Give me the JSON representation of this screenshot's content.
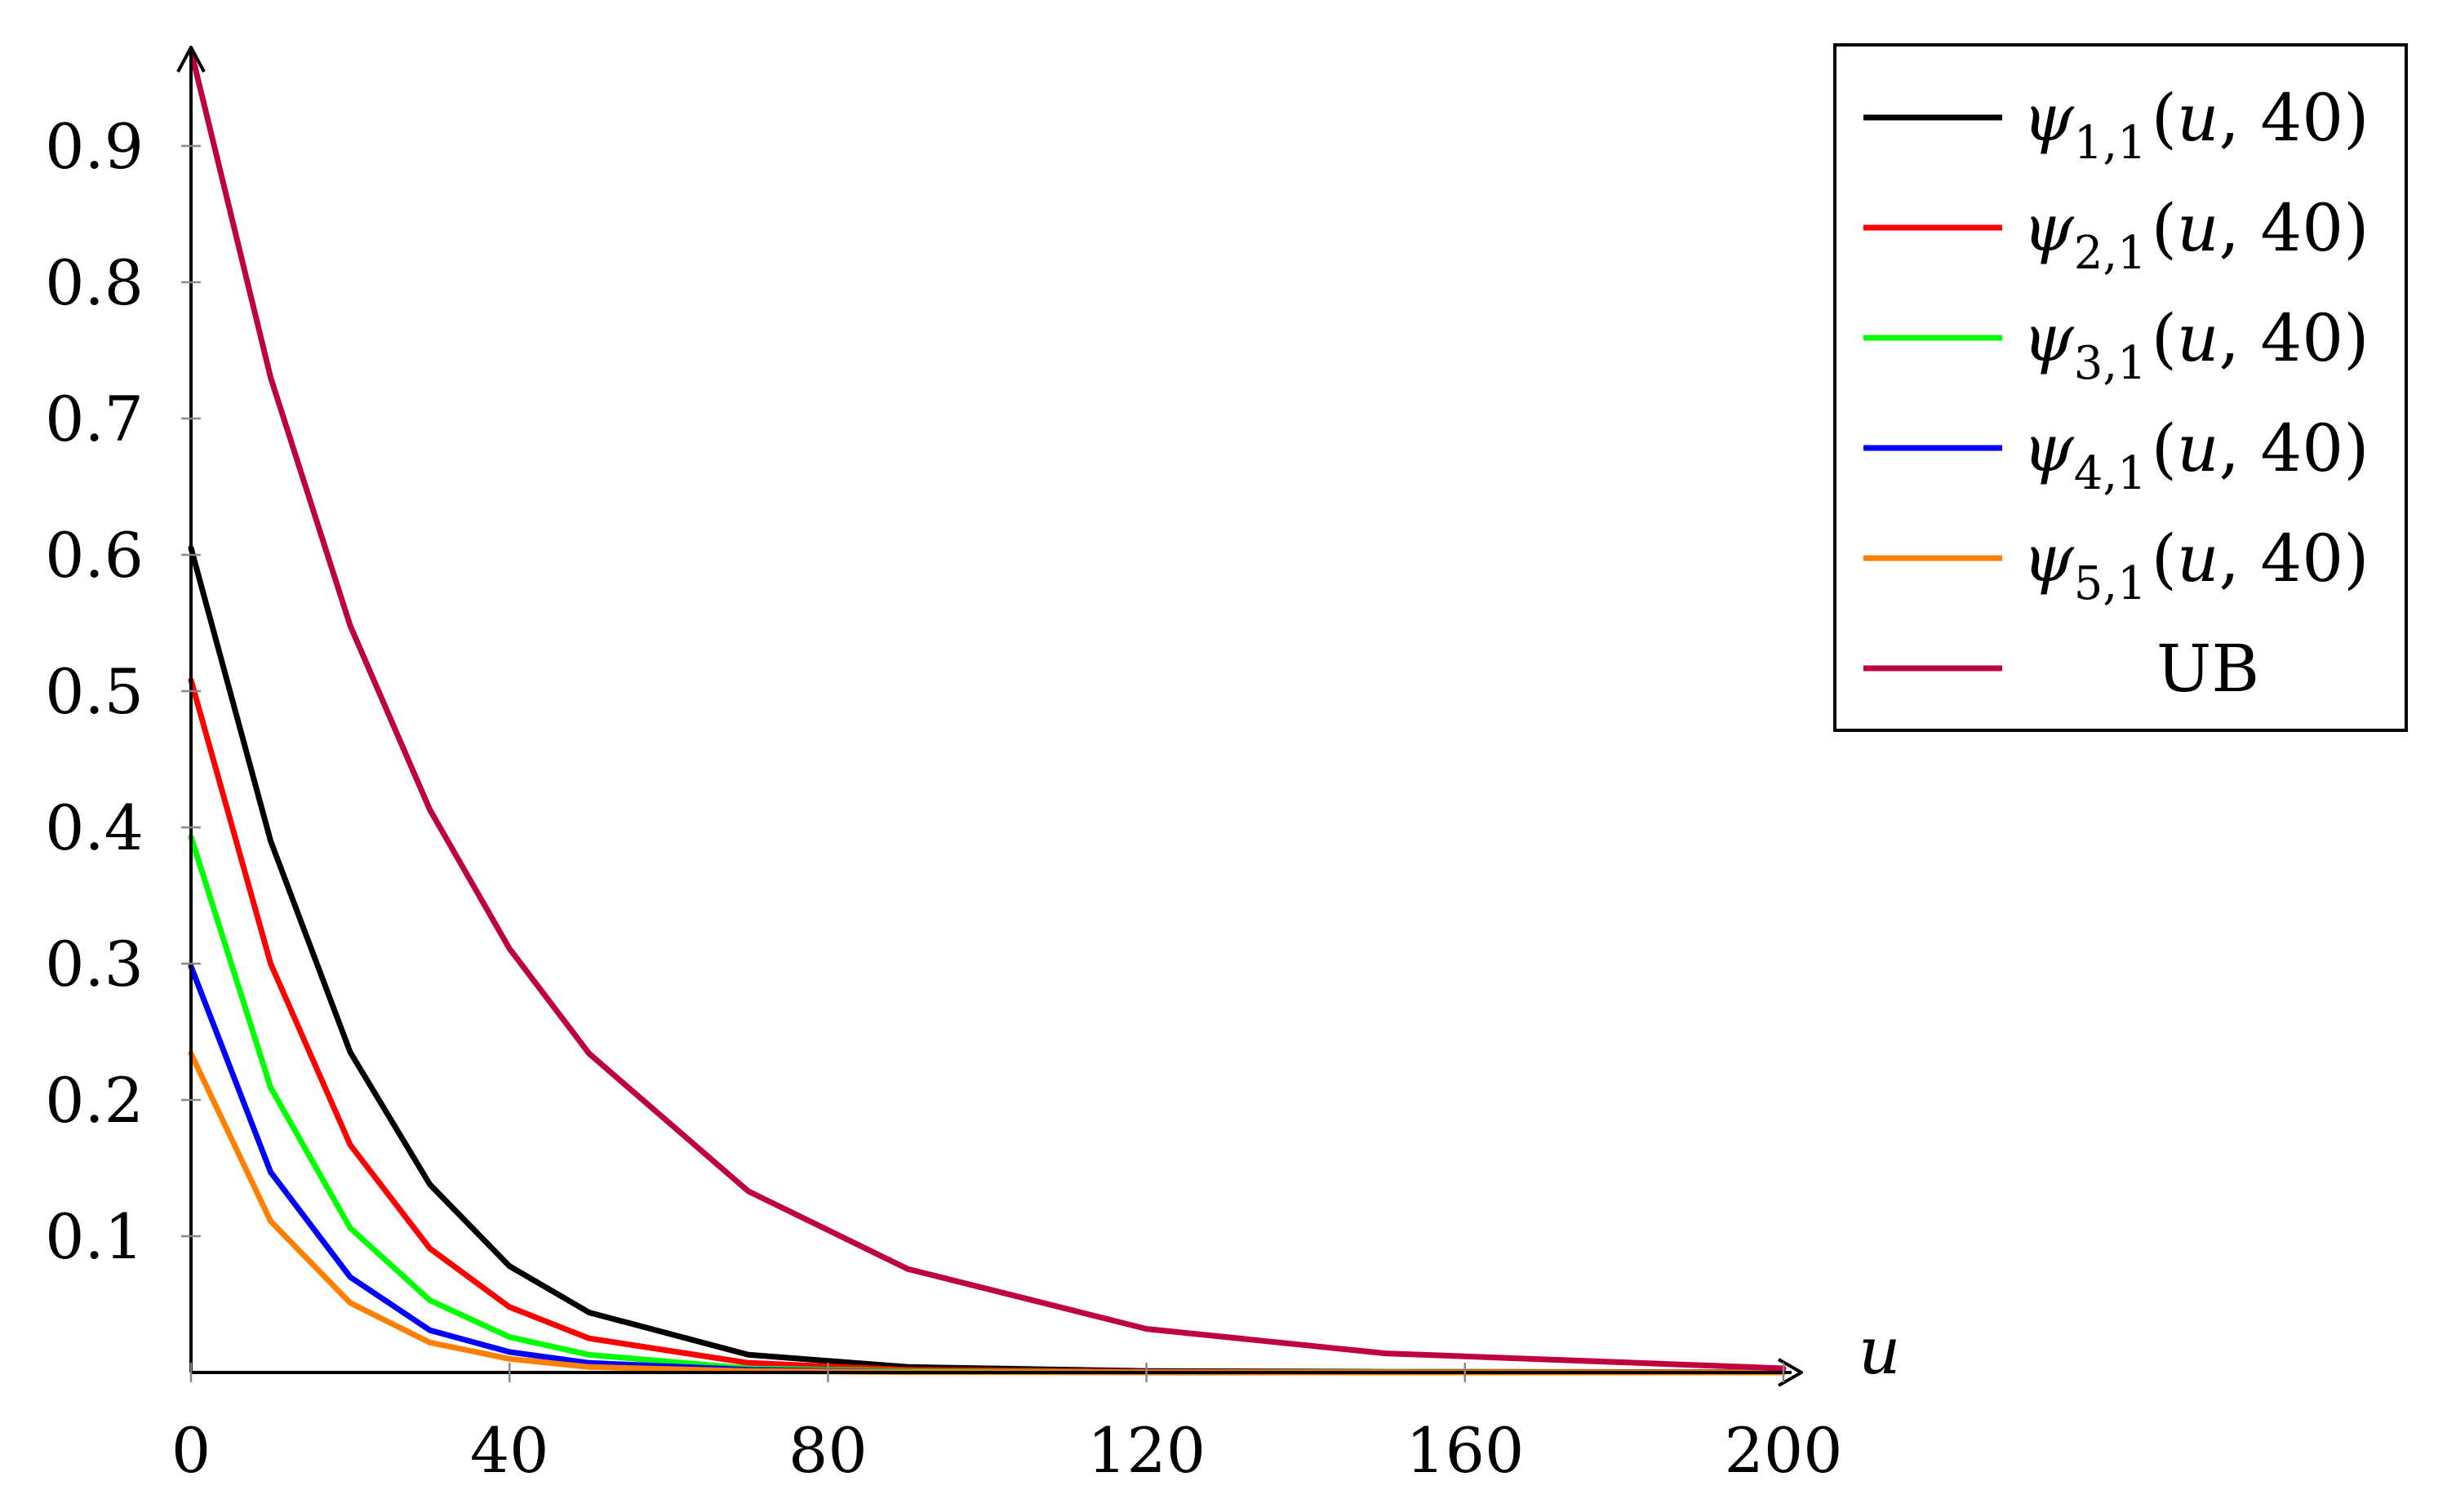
{
  "chart_data": {
    "type": "line",
    "title": "",
    "xlabel": "u",
    "ylabel": "",
    "xlim": [
      0,
      200
    ],
    "ylim": [
      0,
      0.97
    ],
    "grid": false,
    "legend_position": "top-right",
    "x_ticks": [
      "0",
      "40",
      "80",
      "120",
      "160",
      "200"
    ],
    "y_ticks": [
      "0.1",
      "0.2",
      "0.3",
      "0.4",
      "0.5",
      "0.6",
      "0.7",
      "0.8",
      "0.9"
    ],
    "series": [
      {
        "name": "ψ1,1(u, 40)",
        "legend": {
          "symbol": "ψ",
          "sub": "1,1",
          "arg_open": "(",
          "arg_var": "u",
          "arg_rest": ", 40)"
        },
        "color": "#000000",
        "x": [
          0,
          10,
          20,
          30,
          40,
          50,
          70,
          90,
          120,
          150,
          200
        ],
        "y": [
          0.605,
          0.39,
          0.235,
          0.138,
          0.078,
          0.044,
          0.013,
          0.004,
          0.001,
          0.0005,
          0.0002
        ]
      },
      {
        "name": "ψ2,1(u, 40)",
        "legend": {
          "symbol": "ψ",
          "sub": "2,1",
          "arg_open": "(",
          "arg_var": "u",
          "arg_rest": ", 40)"
        },
        "color": "#ff0000",
        "x": [
          0,
          10,
          20,
          30,
          40,
          50,
          70,
          90,
          120,
          150,
          200
        ],
        "y": [
          0.508,
          0.3,
          0.167,
          0.091,
          0.048,
          0.025,
          0.007,
          0.002,
          0.0005,
          0.0002,
          0.0001
        ]
      },
      {
        "name": "ψ3,1(u, 40)",
        "legend": {
          "symbol": "ψ",
          "sub": "3,1",
          "arg_open": "(",
          "arg_var": "u",
          "arg_rest": ", 40)"
        },
        "color": "#00ff00",
        "x": [
          0,
          10,
          20,
          30,
          40,
          50,
          70,
          90,
          120,
          150,
          200
        ],
        "y": [
          0.393,
          0.209,
          0.106,
          0.053,
          0.026,
          0.013,
          0.003,
          0.001,
          0.0002,
          0.0001,
          0.0
        ]
      },
      {
        "name": "ψ4,1(u, 40)",
        "legend": {
          "symbol": "ψ",
          "sub": "4,1",
          "arg_open": "(",
          "arg_var": "u",
          "arg_rest": ", 40)"
        },
        "color": "#0000ff",
        "x": [
          0,
          10,
          20,
          30,
          40,
          50,
          70,
          90,
          120,
          150,
          200
        ],
        "y": [
          0.298,
          0.147,
          0.07,
          0.031,
          0.015,
          0.007,
          0.002,
          0.0005,
          0.0001,
          0.0,
          0.0
        ]
      },
      {
        "name": "ψ5,1(u, 40)",
        "legend": {
          "symbol": "ψ",
          "sub": "5,1",
          "arg_open": "(",
          "arg_var": "u",
          "arg_rest": ", 40)"
        },
        "color": "#ff8000",
        "x": [
          0,
          10,
          20,
          30,
          40,
          50,
          70,
          90,
          120,
          150,
          200
        ],
        "y": [
          0.234,
          0.111,
          0.051,
          0.022,
          0.01,
          0.004,
          0.001,
          0.0003,
          0.0001,
          0.0,
          0.0
        ]
      },
      {
        "name": "UB",
        "legend": {
          "plain": "UB"
        },
        "color": "#bf0040",
        "x": [
          0,
          10,
          20,
          30,
          40,
          50,
          70,
          90,
          120,
          150,
          200
        ],
        "y": [
          0.97,
          0.73,
          0.548,
          0.413,
          0.311,
          0.234,
          0.133,
          0.076,
          0.032,
          0.014,
          0.003
        ]
      }
    ]
  }
}
